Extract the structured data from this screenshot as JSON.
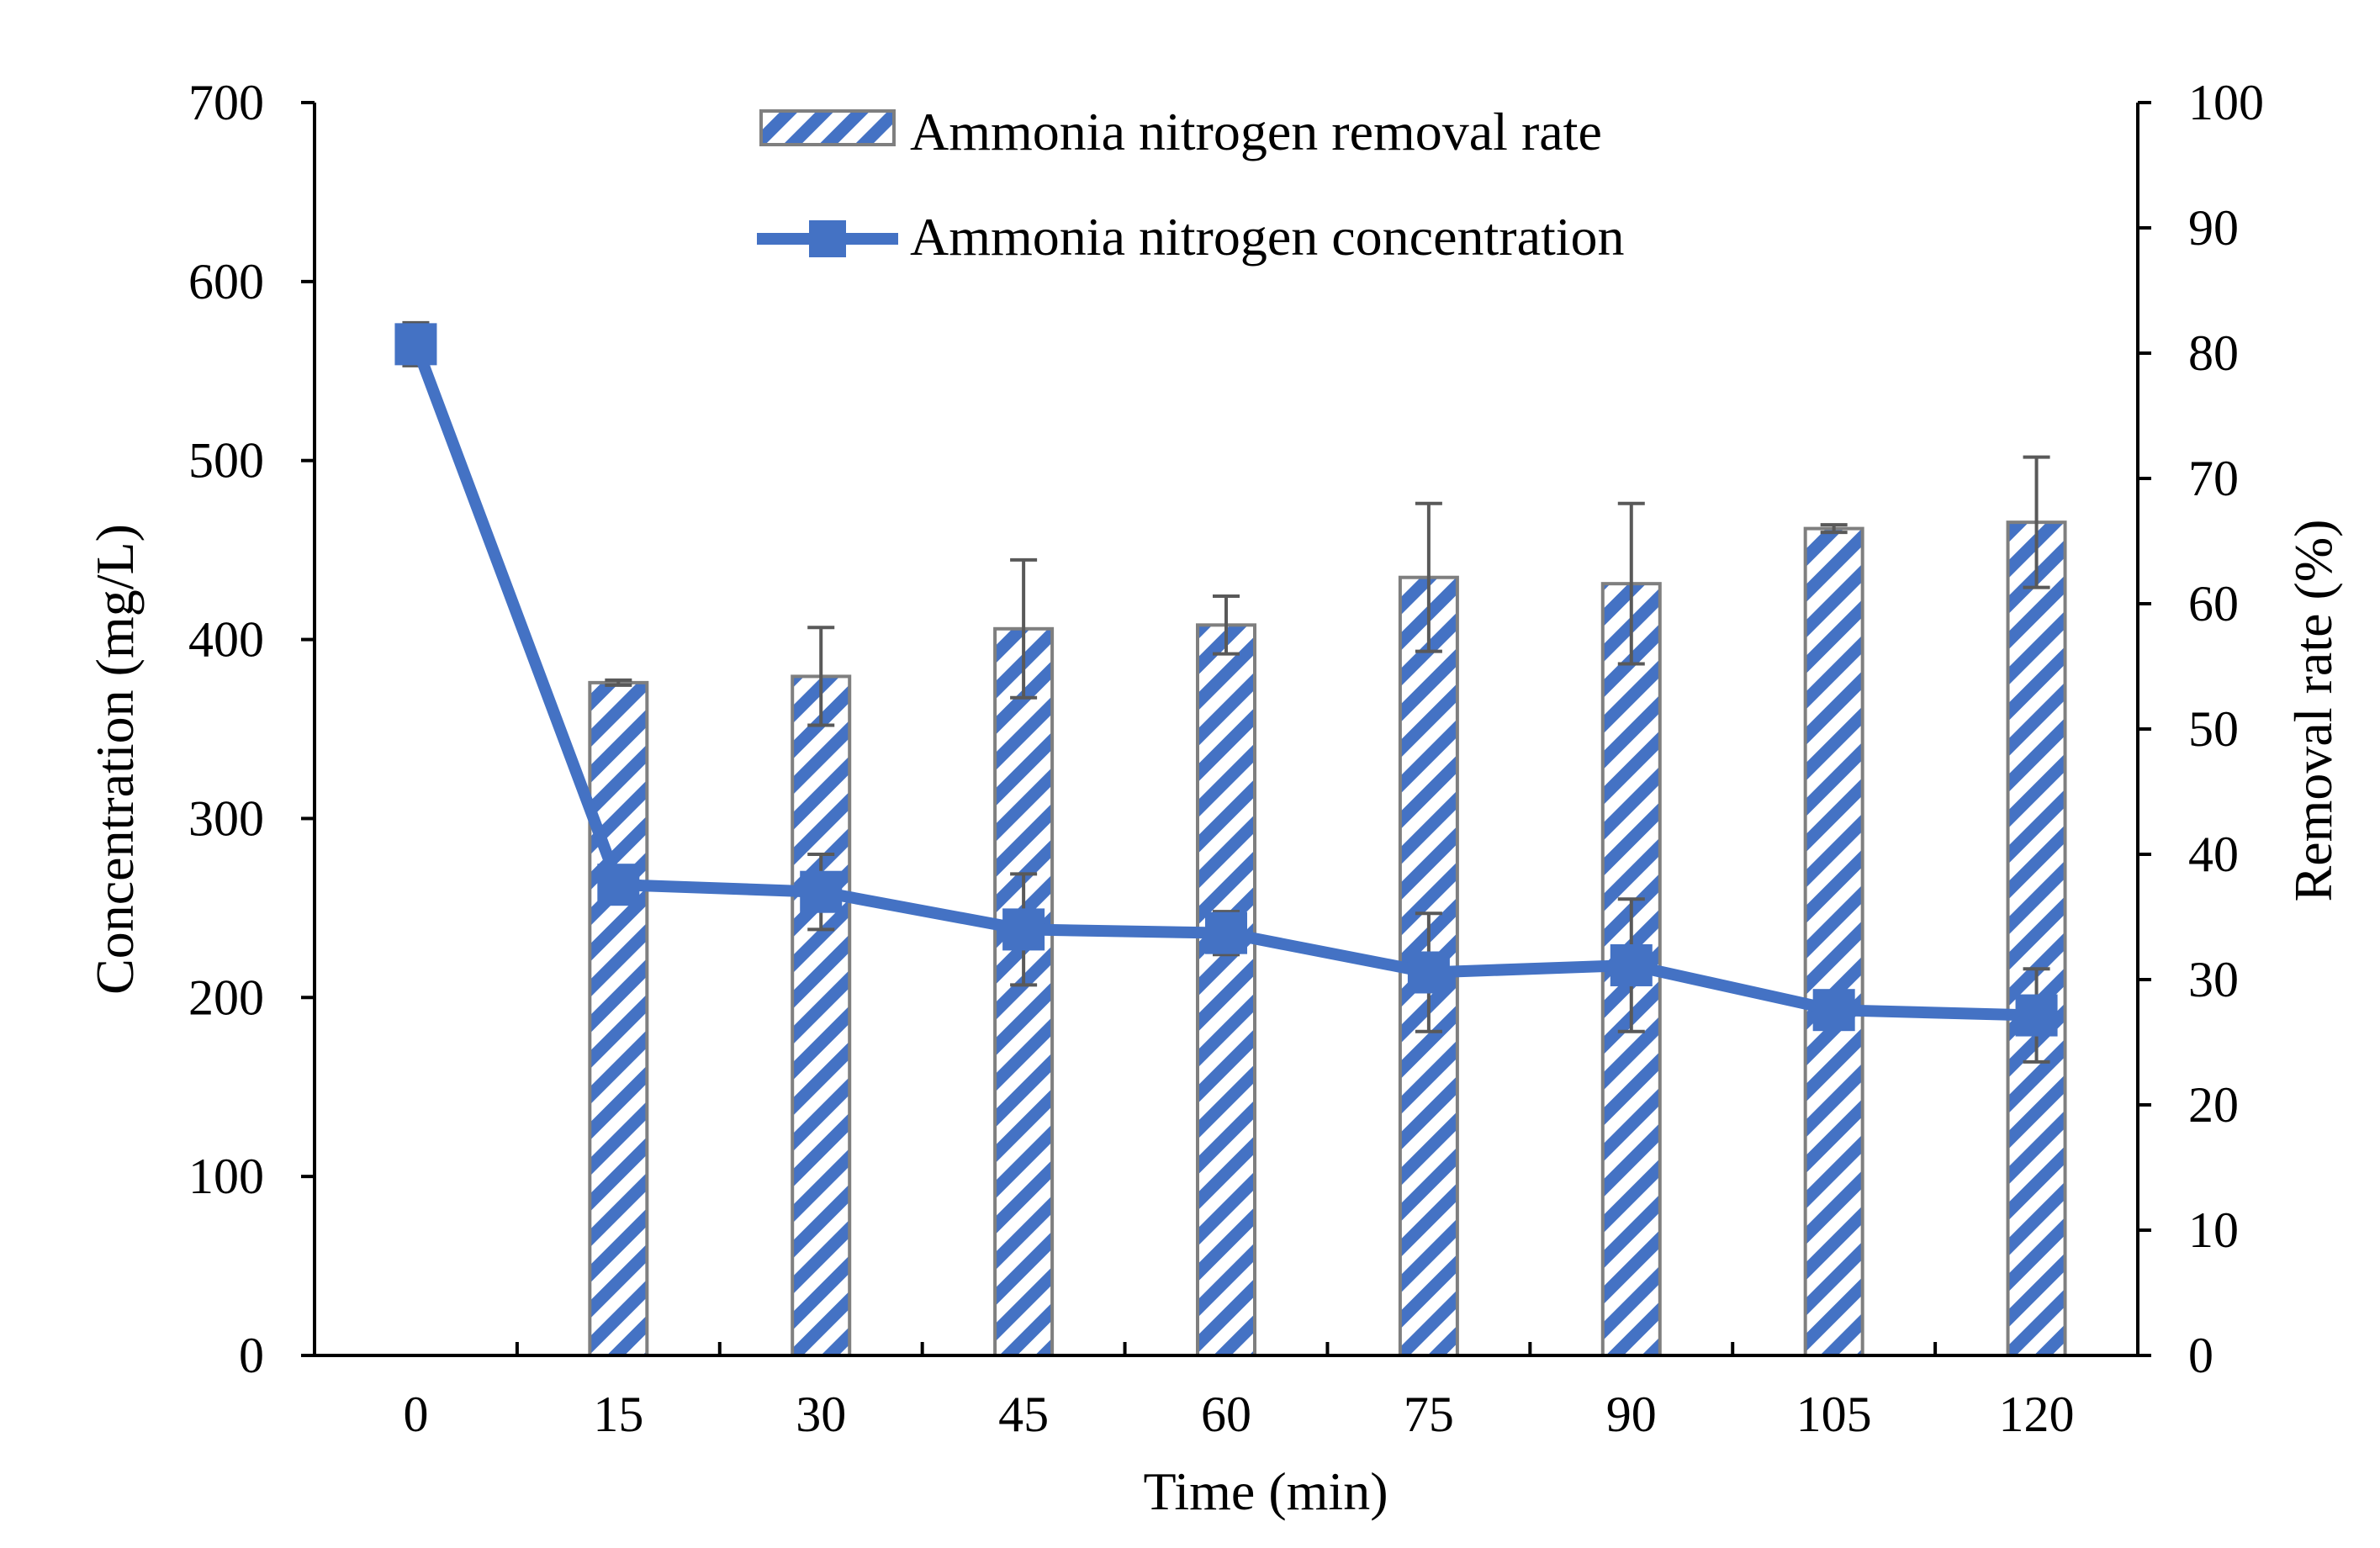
{
  "colors": {
    "line": "#4472C4",
    "bar_stripe": "#4472C4",
    "bar_border": "#7F7F7F",
    "error_bar": "#595959",
    "axis": "#000000"
  },
  "chart_data": {
    "type": "bar+line",
    "categories": [
      "0",
      "15",
      "30",
      "45",
      "60",
      "75",
      "90",
      "105",
      "120"
    ],
    "xlabel": "Time (min)",
    "ylabel_left": "Concentration (mg/L)",
    "ylabel_right": "Removal rate (%)",
    "ylim_left": [
      0,
      700
    ],
    "ylim_right": [
      0,
      100
    ],
    "yticks_left": [
      "0",
      "100",
      "200",
      "300",
      "400",
      "500",
      "600",
      "700"
    ],
    "yticks_right": [
      "0",
      "10",
      "20",
      "30",
      "40",
      "50",
      "60",
      "70",
      "80",
      "90",
      "100"
    ],
    "legend": {
      "position": "top-center",
      "bar_label": "Ammonia nitrogen removal rate",
      "line_label": "Ammonia nitrogen concentration"
    },
    "series": [
      {
        "name": "Ammonia nitrogen removal rate",
        "type": "bar",
        "axis": "right",
        "pattern": "diagonal-stripes",
        "values": [
          null,
          53.7,
          54.2,
          58.0,
          58.3,
          62.1,
          61.6,
          66.0,
          66.5
        ],
        "errors": [
          null,
          0.2,
          3.9,
          5.5,
          2.3,
          5.9,
          6.4,
          0.3,
          5.2
        ]
      },
      {
        "name": "Ammonia nitrogen concentration",
        "type": "line",
        "axis": "left",
        "marker": "square",
        "values": [
          565,
          263,
          259,
          238,
          236,
          214,
          218,
          193,
          190
        ],
        "errors": [
          12,
          5,
          21,
          31,
          12,
          33,
          37,
          5,
          26
        ]
      }
    ]
  }
}
